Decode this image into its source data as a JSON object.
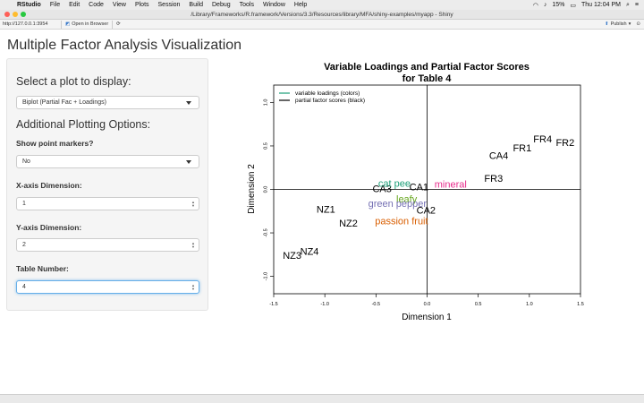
{
  "menubar": {
    "app": "RStudio",
    "items": [
      "File",
      "Edit",
      "Code",
      "View",
      "Plots",
      "Session",
      "Build",
      "Debug",
      "Tools",
      "Window",
      "Help"
    ],
    "battery": "15%",
    "clock": "Thu 12:04 PM"
  },
  "window": {
    "title": "/Library/Frameworks/R.framework/Versions/3.3/Resources/library/MFA/shiny-examples/myapp - Shiny"
  },
  "addressbar": {
    "url": "http://127.0.0.1:3954",
    "open_in_browser": "Open in Browser",
    "publish": "Publish"
  },
  "app": {
    "title": "Multiple Factor Analysis Visualization",
    "select_plot_label": "Select a plot to display:",
    "select_plot_value": "Biplot (Partial Fac + Loadings)",
    "additional_heading": "Additional Plotting Options:",
    "markers_label": "Show point markers?",
    "markers_value": "No",
    "xdim_label": "X-axis Dimension:",
    "xdim_value": "1",
    "ydim_label": "Y-axis Dimension:",
    "ydim_value": "2",
    "table_label": "Table Number:",
    "table_value": "4"
  },
  "chart_data": {
    "type": "scatter",
    "title": "Variable Loadings and Partial Factor Scores",
    "subtitle": "for Table 4",
    "xlabel": "Dimension 1",
    "ylabel": "Dimension 2",
    "xlim": [
      -1.5,
      1.5
    ],
    "ylim": [
      -1.2,
      1.2
    ],
    "xticks": [
      "-1.5",
      "-1.0",
      "-0.5",
      "0.0",
      "0.5",
      "1.0",
      "1.5"
    ],
    "yticks": [
      "-1.0",
      "-0.5",
      "0.0",
      "0.5",
      "1.0"
    ],
    "xtick_values": [
      -1.5,
      -1.0,
      -0.5,
      0.0,
      0.5,
      1.0,
      1.5
    ],
    "ytick_values": [
      -1.0,
      -0.5,
      0.0,
      0.5,
      1.0
    ],
    "legend": {
      "placement": "top-left",
      "entries": [
        {
          "label": "variable loadings (colors)",
          "color": "#1b9e77"
        },
        {
          "label": "partial factor scores (black)",
          "color": "#000000"
        }
      ]
    },
    "reference_lines": {
      "x": 0,
      "y": 0
    },
    "series": [
      {
        "kind": "scores",
        "color": "#000000",
        "points": [
          {
            "label": "FR4",
            "x": 1.13,
            "y": 0.57
          },
          {
            "label": "FR2",
            "x": 1.35,
            "y": 0.53
          },
          {
            "label": "FR1",
            "x": 0.93,
            "y": 0.47
          },
          {
            "label": "CA4",
            "x": 0.7,
            "y": 0.38
          },
          {
            "label": "FR3",
            "x": 0.65,
            "y": 0.12
          },
          {
            "label": "CA3",
            "x": -0.44,
            "y": 0.0
          },
          {
            "label": "CA1",
            "x": -0.08,
            "y": 0.02
          },
          {
            "label": "CA2",
            "x": -0.01,
            "y": -0.25
          },
          {
            "label": "NZ1",
            "x": -0.99,
            "y": -0.24
          },
          {
            "label": "NZ2",
            "x": -0.77,
            "y": -0.4
          },
          {
            "label": "NZ4",
            "x": -1.15,
            "y": -0.72
          },
          {
            "label": "NZ3",
            "x": -1.32,
            "y": -0.77
          }
        ]
      },
      {
        "kind": "loadings",
        "points": [
          {
            "label": "cat pee",
            "x": -0.32,
            "y": 0.06,
            "color": "#1b9e77"
          },
          {
            "label": "mineral",
            "x": 0.23,
            "y": 0.05,
            "color": "#e7298a"
          },
          {
            "label": "leafy",
            "x": -0.2,
            "y": -0.12,
            "color": "#66a61e"
          },
          {
            "label": "green pepper",
            "x": -0.29,
            "y": -0.17,
            "color": "#7570b3"
          },
          {
            "label": "passion fruit",
            "x": -0.25,
            "y": -0.37,
            "color": "#d95f02"
          }
        ]
      }
    ]
  }
}
